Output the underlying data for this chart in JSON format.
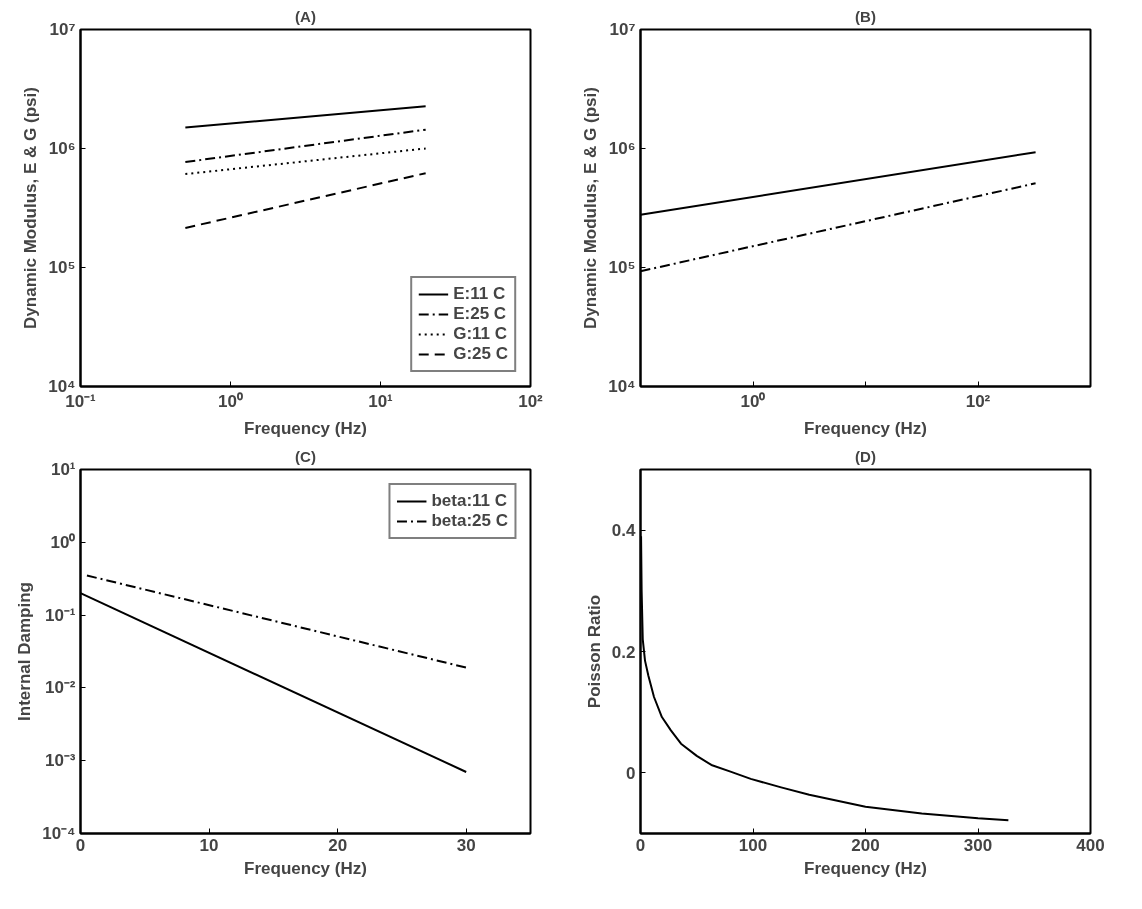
{
  "chart_data": [
    {
      "type": "line",
      "title": "(A)",
      "xlabel": "Frequency (Hz)",
      "ylabel": "Dynamic Modulus, E & G (psi)",
      "log": "xy",
      "grid": false,
      "legend": "bottom right",
      "xlim": [
        0.1,
        100
      ],
      "ylim": [
        10000,
        10000000
      ],
      "xticks": [
        {
          "value": 0.1,
          "label": "10⁻¹"
        },
        {
          "value": 1,
          "label": "10⁰"
        },
        {
          "value": 10,
          "label": "10¹"
        },
        {
          "value": 100,
          "label": "10²"
        }
      ],
      "yticks": [
        {
          "value": 10000,
          "label": "10⁴"
        },
        {
          "value": 100000,
          "label": "10⁵"
        },
        {
          "value": 1000000,
          "label": "10⁶"
        },
        {
          "value": 10000000,
          "label": "10⁷"
        }
      ],
      "series": [
        {
          "name": "E:11 C",
          "color": "#000000",
          "line_style": "solid",
          "x": [
            0.5,
            20
          ],
          "values": [
            1500000,
            2270000
          ]
        },
        {
          "name": "E:25 C",
          "color": "#000000",
          "line_style": "dashdot",
          "x": [
            0.5,
            20
          ],
          "values": [
            770000,
            1440000
          ]
        },
        {
          "name": "G:11 C",
          "color": "#000000",
          "line_style": "dotted",
          "x": [
            0.5,
            20
          ],
          "values": [
            610000,
            1000000
          ]
        },
        {
          "name": "G:25 C",
          "color": "#000000",
          "line_style": "dashed",
          "x": [
            0.5,
            20
          ],
          "values": [
            215000,
            620000
          ]
        }
      ]
    },
    {
      "type": "line",
      "title": "(B)",
      "xlabel": "Frequency (Hz)",
      "ylabel": "Dynamic Modulus, E & G (psi)",
      "log": "xy",
      "grid": false,
      "xlim": [
        0.1,
        1000
      ],
      "ylim": [
        10000,
        10000000
      ],
      "xticks": [
        {
          "value": 1,
          "label": "10⁰"
        },
        {
          "value": 10,
          "label": null
        },
        {
          "value": 100,
          "label": "10²"
        }
      ],
      "yticks": [
        {
          "value": 10000,
          "label": "10⁴"
        },
        {
          "value": 100000,
          "label": "10⁵"
        },
        {
          "value": 1000000,
          "label": "10⁶"
        },
        {
          "value": 10000000,
          "label": "10⁷"
        }
      ],
      "series": [
        {
          "color": "#000000",
          "line_style": "solid",
          "x": [
            0.1,
            325
          ],
          "values": [
            277000,
            930000
          ]
        },
        {
          "color": "#000000",
          "line_style": "dashdot",
          "x": [
            0.1,
            325
          ],
          "values": [
            93000,
            510000
          ]
        }
      ]
    },
    {
      "type": "line",
      "title": "(C)",
      "xlabel": "Frequency (Hz)",
      "ylabel": "Internal Damping",
      "log": "y",
      "grid": false,
      "legend": "top right",
      "xlim": [
        0,
        35
      ],
      "ylim": [
        0.0001,
        10
      ],
      "xticks": [
        0,
        10,
        20,
        30
      ],
      "yticks": [
        {
          "value": 0.0001,
          "label": "10⁻⁴"
        },
        {
          "value": 0.001,
          "label": "10⁻³"
        },
        {
          "value": 0.01,
          "label": "10⁻²"
        },
        {
          "value": 0.1,
          "label": "10⁻¹"
        },
        {
          "value": 1,
          "label": "10⁰"
        },
        {
          "value": 10,
          "label": "10¹"
        }
      ],
      "series": [
        {
          "name": "beta:11 C",
          "color": "#000000",
          "line_style": "solid",
          "x": [
            0,
            30
          ],
          "values": [
            0.2,
            0.0007
          ]
        },
        {
          "name": "beta:25 C",
          "color": "#000000",
          "line_style": "dashdot",
          "x": [
            0.5,
            30
          ],
          "values": [
            0.35,
            0.019
          ]
        }
      ]
    },
    {
      "type": "line",
      "title": "(D)",
      "xlabel": "Frequency (Hz)",
      "ylabel": "Poisson Ratio",
      "grid": false,
      "xlim": [
        0,
        400
      ],
      "ylim": [
        -0.1,
        0.5
      ],
      "xticks": [
        0,
        100,
        200,
        300,
        400
      ],
      "yticks": [
        0,
        0.2,
        0.4
      ],
      "series": [
        {
          "color": "#000000",
          "line_style": "solid",
          "x": [
            0.5,
            1,
            2,
            4,
            7,
            12,
            19,
            27,
            36,
            50,
            63,
            80,
            98,
            125,
            150,
            200,
            250,
            300,
            327
          ],
          "values": [
            0.39,
            0.3,
            0.22,
            0.185,
            0.16,
            0.125,
            0.092,
            0.07,
            0.048,
            0.028,
            0.013,
            0.002,
            -0.01,
            -0.024,
            -0.036,
            -0.056,
            -0.067,
            -0.075,
            -0.078
          ]
        }
      ]
    }
  ]
}
